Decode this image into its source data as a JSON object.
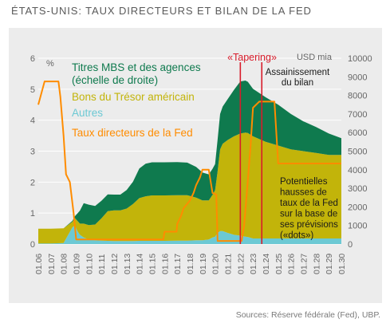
{
  "title": "ÉTATS-UNIS: TAUX DIRECTEURS ET BILAN DE LA FED",
  "source": "Sources: Réserve fédérale (Fed), UBP.",
  "colors": {
    "mbs": "#0f7a4e",
    "treasury": "#c2b40a",
    "other": "#6cc9d4",
    "rate": "#ff8c00",
    "tapering": "#d81b2a",
    "panel": "#ececec",
    "grid": "#ffffff",
    "axis_text": "#666666"
  },
  "chart_data": {
    "type": "area",
    "title": "ÉTATS-UNIS: TAUX DIRECTEURS ET BILAN DE LA FED",
    "x_ticks": [
      "01.06",
      "01.07",
      "01.08",
      "01.09",
      "01.10",
      "01.11",
      "01.12",
      "01.13",
      "01.14",
      "01.15",
      "01.16",
      "01.17",
      "01.18",
      "01.19",
      "01.20",
      "01.21",
      "01.22",
      "01.23",
      "01.24",
      "01.25",
      "01.26",
      "01.27",
      "01.28",
      "01.29",
      "01.30"
    ],
    "y_left": {
      "label": "%",
      "range": [
        0,
        6
      ],
      "ticks": [
        "0",
        "1",
        "2",
        "3",
        "4",
        "5",
        "6"
      ]
    },
    "y_right": {
      "label": "USD mia",
      "range": [
        0,
        10000
      ],
      "ticks": [
        "0",
        "1000",
        "2000",
        "3000",
        "4000",
        "5000",
        "6000",
        "7000",
        "8000",
        "9000",
        "10000"
      ]
    },
    "legend": [
      {
        "key": "mbs",
        "label_lines": [
          "Titres MBS et des agences",
          "(échelle de droite)"
        ]
      },
      {
        "key": "treasury",
        "label_lines": [
          "Bons du Trésor américain"
        ]
      },
      {
        "key": "other",
        "label_lines": [
          "Autres"
        ]
      },
      {
        "key": "rate",
        "label_lines": [
          "Taux directeurs de la Fed"
        ]
      }
    ],
    "legend_position": "top-left",
    "annotations": {
      "tapering": "«Tapering»",
      "runoff": [
        "Assainissement",
        "du bilan"
      ],
      "projection": [
        "Potentielles",
        "hausses de",
        "taux de la Fed",
        "sur la base de",
        "ses prévisions",
        "(«dots»)"
      ]
    },
    "tapering_dates": [
      2022.0,
      2023.7
    ],
    "balance_sheet_usd_bn": {
      "x": [
        2006.0,
        2007.0,
        2008.0,
        2008.7,
        2008.9,
        2009.1,
        2009.3,
        2009.6,
        2010.0,
        2010.5,
        2011.0,
        2011.5,
        2012.0,
        2012.5,
        2013.0,
        2013.5,
        2014.0,
        2014.5,
        2015.0,
        2016.0,
        2017.0,
        2017.8,
        2018.5,
        2019.0,
        2019.5,
        2019.8,
        2020.0,
        2020.2,
        2020.4,
        2020.6,
        2021.0,
        2021.5,
        2022.0,
        2022.4,
        2022.6,
        2023.0,
        2024.0,
        2025.0,
        2026.0,
        2027.0,
        2028.0,
        2029.0,
        2030.0
      ],
      "other": [
        30,
        30,
        50,
        900,
        1000,
        700,
        500,
        350,
        250,
        200,
        180,
        170,
        160,
        160,
        160,
        160,
        170,
        170,
        170,
        170,
        180,
        180,
        200,
        200,
        250,
        350,
        400,
        600,
        700,
        700,
        600,
        500,
        450,
        400,
        380,
        300,
        300,
        300,
        300,
        300,
        300,
        300,
        300
      ],
      "treasury": [
        800,
        800,
        800,
        300,
        400,
        550,
        600,
        750,
        770,
        850,
        1200,
        1600,
        1650,
        1650,
        1750,
        2000,
        2300,
        2400,
        2450,
        2450,
        2450,
        2450,
        2300,
        2150,
        2100,
        2300,
        2500,
        3300,
        4400,
        4700,
        5000,
        5300,
        5500,
        5600,
        5600,
        5500,
        5200,
        5000,
        4800,
        4700,
        4600,
        4500,
        4500
      ],
      "mbs": [
        0,
        0,
        0,
        50,
        100,
        400,
        700,
        1100,
        1100,
        1000,
        950,
        900,
        850,
        850,
        1000,
        1200,
        1600,
        1750,
        1780,
        1780,
        1780,
        1750,
        1650,
        1500,
        1400,
        1400,
        1400,
        1700,
        1900,
        2000,
        2200,
        2500,
        2800,
        2800,
        2750,
        2550,
        2400,
        2200,
        1900,
        1600,
        1400,
        1150,
        900
      ]
    },
    "fed_funds_rate_pct": {
      "x": [
        2006.0,
        2006.5,
        2007.6,
        2007.75,
        2008.0,
        2008.2,
        2008.5,
        2008.8,
        2009.0,
        2015.9,
        2016.0,
        2016.95,
        2017.0,
        2017.3,
        2017.5,
        2018.0,
        2018.3,
        2018.5,
        2018.8,
        2019.0,
        2019.5,
        2019.6,
        2019.8,
        2020.1,
        2020.2,
        2022.1,
        2022.3,
        2022.5,
        2022.8,
        2023.0,
        2023.5,
        2024.0,
        2024.7,
        2025.0,
        2030.0
      ],
      "y": [
        4.5,
        5.25,
        5.25,
        4.75,
        3.5,
        2.25,
        2.0,
        1.0,
        0.15,
        0.15,
        0.4,
        0.4,
        0.65,
        0.9,
        1.15,
        1.4,
        1.65,
        1.9,
        2.15,
        2.4,
        2.4,
        2.15,
        1.65,
        1.6,
        0.1,
        0.1,
        0.6,
        1.6,
        3.1,
        4.4,
        4.6,
        4.6,
        4.6,
        2.6,
        2.6
      ]
    }
  }
}
